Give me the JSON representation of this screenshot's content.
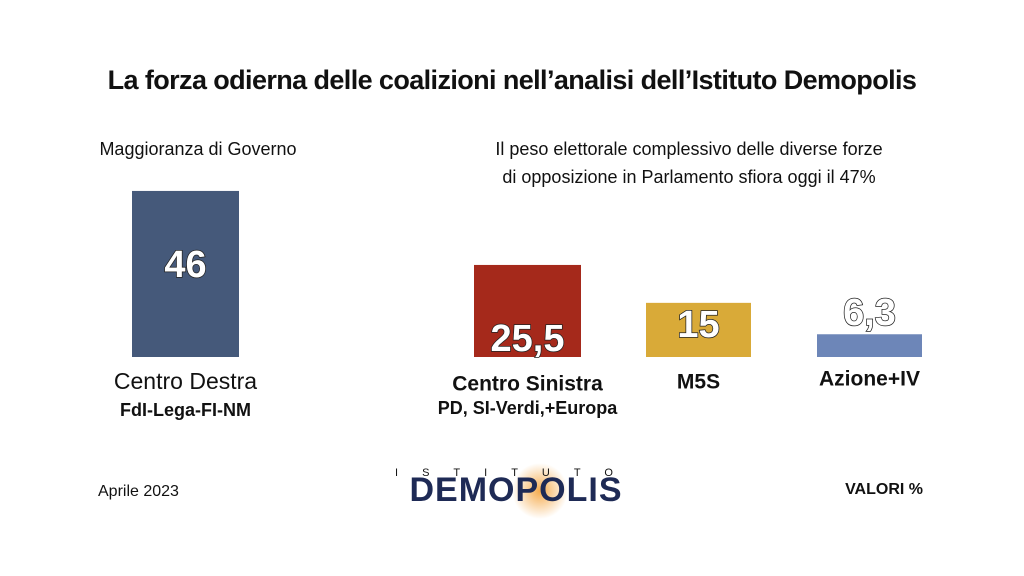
{
  "chart_data": {
    "type": "bar",
    "title": "La forza odierna delle coalizioni nell’analisi dell’Istituto Demopolis",
    "group_labels": [
      "Maggioranza di Governo"
    ],
    "annotation": [
      "Il peso elettorale complessivo delle diverse forze",
      "di opposizione in Parlamento sfiora oggi il 47%"
    ],
    "categories": [
      "Centro Destra",
      "Centro Sinistra",
      "M5S",
      "Azione+IV"
    ],
    "subcategories": [
      "FdI-Lega-FI-NM",
      "PD, SI-Verdi,+Europa",
      null,
      null
    ],
    "values": [
      46,
      25.5,
      15,
      6.3
    ],
    "value_labels": [
      "46",
      "25,5",
      "15",
      "6,3"
    ],
    "colors": [
      "#45597a",
      "#a5291b",
      "#d9aa38",
      "#6d86b8"
    ],
    "date": "Aprile 2023",
    "units_note": "VALORI %",
    "logo": [
      "ISTITUTO",
      "DEMOPOLIS"
    ]
  }
}
